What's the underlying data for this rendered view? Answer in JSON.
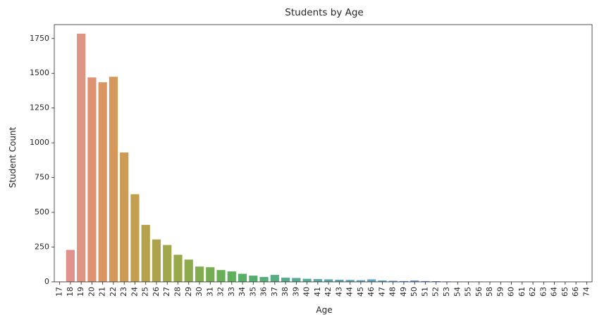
{
  "chart_data": {
    "type": "bar",
    "title": "Students by Age",
    "xlabel": "Age",
    "ylabel": "Student Count",
    "ylim": [
      0,
      1850
    ],
    "yticks": [
      0,
      250,
      500,
      750,
      1000,
      1250,
      1500,
      1750
    ],
    "grid": false,
    "categories": [
      "17",
      "18",
      "19",
      "20",
      "21",
      "22",
      "23",
      "24",
      "25",
      "26",
      "27",
      "28",
      "29",
      "30",
      "31",
      "32",
      "33",
      "34",
      "35",
      "36",
      "37",
      "38",
      "39",
      "40",
      "41",
      "42",
      "43",
      "44",
      "45",
      "46",
      "47",
      "48",
      "49",
      "50",
      "51",
      "52",
      "53",
      "54",
      "55",
      "56",
      "58",
      "59",
      "60",
      "61",
      "62",
      "63",
      "64",
      "65",
      "66",
      "74"
    ],
    "values": [
      2,
      230,
      1785,
      1470,
      1435,
      1475,
      930,
      630,
      410,
      305,
      265,
      195,
      160,
      110,
      105,
      85,
      75,
      58,
      45,
      35,
      50,
      30,
      28,
      22,
      20,
      18,
      15,
      14,
      12,
      18,
      10,
      8,
      6,
      10,
      6,
      5,
      3,
      2,
      2,
      2,
      1,
      1,
      1,
      1,
      1,
      1,
      1,
      1,
      1,
      1
    ],
    "colors": [
      "#e28c8c",
      "#e1918c",
      "#df9583",
      "#dd9370",
      "#da9562",
      "#d5975a",
      "#cd9b53",
      "#c39e4f",
      "#b7a14d",
      "#aca44c",
      "#a1a74b",
      "#97a94b",
      "#8daa4c",
      "#82ac4f",
      "#76ad52",
      "#6aaf57",
      "#5faf5d",
      "#58ae66",
      "#56ad70",
      "#56ad79",
      "#57ac82",
      "#57ab8a",
      "#58aa91",
      "#59a999",
      "#5aa8a0",
      "#5ba7a7",
      "#5ca6ad",
      "#5da5b4",
      "#5ea4bb",
      "#60a2c2",
      "#629fca",
      "#669cd1",
      "#6b98d8",
      "#7194de",
      "#798fe3",
      "#848ae6",
      "#8e85e6",
      "#9a80e4",
      "#a67be0",
      "#b276da",
      "#bc72d2",
      "#c66fca",
      "#cf6fc1",
      "#d671b7",
      "#dc74ae",
      "#e078a5",
      "#e27d9c",
      "#e38294",
      "#e3878d",
      "#e48b88"
    ]
  }
}
